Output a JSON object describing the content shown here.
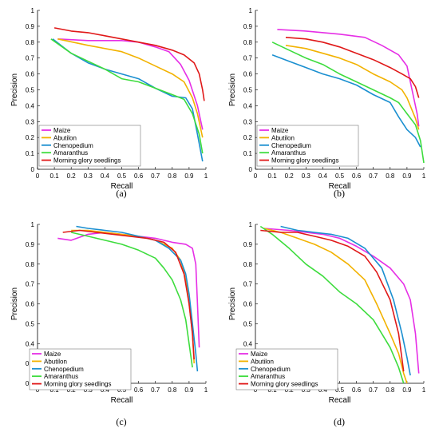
{
  "colors": {
    "Maize": "#e62fe6",
    "Abutilon": "#f2b200",
    "Chenopedium": "#1a8fd0",
    "Amaranthus": "#3ddc3d",
    "Morning glory seedlings": "#e01818"
  },
  "chart_data": [
    {
      "type": "line",
      "caption": "(a)",
      "xlabel": "Recall",
      "ylabel": "Precision",
      "xlim": [
        0,
        1
      ],
      "ylim": [
        0,
        1
      ],
      "xticks": [
        "0",
        "0.1",
        "0.2",
        "0.3",
        "0.4",
        "0.5",
        "0.6",
        "0.7",
        "0.8",
        "0.9",
        "1"
      ],
      "yticks": [
        "0",
        "0.1",
        "0.2",
        "0.3",
        "0.4",
        "0.5",
        "0.6",
        "0.7",
        "0.8",
        "0.9",
        "1"
      ],
      "legend_position": "bottom-left",
      "series": [
        {
          "name": "Maize",
          "x": [
            0.12,
            0.3,
            0.5,
            0.6,
            0.7,
            0.78,
            0.85,
            0.9,
            0.95,
            0.98
          ],
          "y": [
            0.82,
            0.81,
            0.81,
            0.8,
            0.77,
            0.74,
            0.66,
            0.56,
            0.4,
            0.25
          ]
        },
        {
          "name": "Abutilon",
          "x": [
            0.12,
            0.3,
            0.5,
            0.6,
            0.7,
            0.8,
            0.87,
            0.92,
            0.95,
            0.98
          ],
          "y": [
            0.82,
            0.78,
            0.74,
            0.7,
            0.65,
            0.6,
            0.55,
            0.45,
            0.35,
            0.2
          ]
        },
        {
          "name": "Chenopedium",
          "x": [
            0.09,
            0.2,
            0.3,
            0.4,
            0.5,
            0.6,
            0.7,
            0.8,
            0.88,
            0.92,
            0.95,
            0.98
          ],
          "y": [
            0.82,
            0.73,
            0.67,
            0.63,
            0.6,
            0.57,
            0.51,
            0.46,
            0.45,
            0.38,
            0.22,
            0.05
          ]
        },
        {
          "name": "Amaranthus",
          "x": [
            0.08,
            0.2,
            0.3,
            0.4,
            0.5,
            0.6,
            0.7,
            0.8,
            0.87,
            0.92,
            0.96,
            0.98
          ],
          "y": [
            0.82,
            0.73,
            0.68,
            0.63,
            0.57,
            0.55,
            0.51,
            0.47,
            0.44,
            0.35,
            0.22,
            0.1
          ]
        },
        {
          "name": "Morning glory seedlings",
          "x": [
            0.1,
            0.2,
            0.3,
            0.4,
            0.5,
            0.6,
            0.7,
            0.8,
            0.87,
            0.93,
            0.96,
            0.98,
            0.99
          ],
          "y": [
            0.89,
            0.87,
            0.86,
            0.84,
            0.82,
            0.8,
            0.78,
            0.75,
            0.72,
            0.67,
            0.6,
            0.5,
            0.43
          ]
        }
      ]
    },
    {
      "type": "line",
      "caption": "(b)",
      "xlabel": "Recall",
      "ylabel": "Precision",
      "xlim": [
        0,
        1
      ],
      "ylim": [
        0,
        1
      ],
      "xticks": [
        "0",
        "0.1",
        "0.2",
        "0.3",
        "0.4",
        "0.5",
        "0.6",
        "0.7",
        "0.8",
        "0.9",
        "1"
      ],
      "yticks": [
        "0",
        "0.1",
        "0.2",
        "0.3",
        "0.4",
        "0.5",
        "0.6",
        "0.7",
        "0.8",
        "0.9",
        "1"
      ],
      "legend_position": "bottom-left",
      "series": [
        {
          "name": "Maize",
          "x": [
            0.13,
            0.3,
            0.5,
            0.65,
            0.75,
            0.85,
            0.9,
            0.93,
            0.96,
            0.97
          ],
          "y": [
            0.88,
            0.87,
            0.85,
            0.83,
            0.78,
            0.72,
            0.65,
            0.5,
            0.35,
            0.27
          ]
        },
        {
          "name": "Abutilon",
          "x": [
            0.18,
            0.3,
            0.4,
            0.5,
            0.6,
            0.7,
            0.8,
            0.87,
            0.9,
            0.95,
            0.97
          ],
          "y": [
            0.78,
            0.76,
            0.73,
            0.7,
            0.66,
            0.6,
            0.55,
            0.5,
            0.45,
            0.32,
            0.25
          ]
        },
        {
          "name": "Chenopedium",
          "x": [
            0.1,
            0.2,
            0.3,
            0.4,
            0.5,
            0.6,
            0.7,
            0.8,
            0.85,
            0.9,
            0.95,
            0.98
          ],
          "y": [
            0.72,
            0.68,
            0.64,
            0.6,
            0.57,
            0.53,
            0.47,
            0.42,
            0.33,
            0.25,
            0.2,
            0.14
          ]
        },
        {
          "name": "Amaranthus",
          "x": [
            0.1,
            0.2,
            0.3,
            0.4,
            0.5,
            0.6,
            0.7,
            0.8,
            0.85,
            0.9,
            0.95,
            0.98,
            1.0
          ],
          "y": [
            0.8,
            0.75,
            0.7,
            0.66,
            0.6,
            0.55,
            0.5,
            0.45,
            0.42,
            0.35,
            0.28,
            0.18,
            0.04
          ]
        },
        {
          "name": "Morning glory seedlings",
          "x": [
            0.18,
            0.3,
            0.4,
            0.5,
            0.6,
            0.7,
            0.8,
            0.87,
            0.92,
            0.95,
            0.97
          ],
          "y": [
            0.83,
            0.82,
            0.8,
            0.77,
            0.73,
            0.69,
            0.64,
            0.6,
            0.57,
            0.52,
            0.45
          ]
        }
      ]
    },
    {
      "type": "line",
      "caption": "(c)",
      "xlabel": "Recall",
      "ylabel": "Precision",
      "xlim": [
        0,
        1
      ],
      "ylim": [
        0.2,
        1
      ],
      "xticks": [
        "0",
        "0.1",
        "0.2",
        "0.3",
        "0.4",
        "0.5",
        "0.6",
        "0.7",
        "0.8",
        "0.9",
        "1"
      ],
      "yticks": [
        "0.2",
        "0.3",
        "0.4",
        "0.5",
        "0.6",
        "0.7",
        "0.8",
        "0.9",
        "1"
      ],
      "legend_position": "bottom-left",
      "series": [
        {
          "name": "Maize",
          "x": [
            0.12,
            0.2,
            0.3,
            0.4,
            0.5,
            0.6,
            0.7,
            0.8,
            0.88,
            0.92,
            0.94,
            0.95,
            0.96
          ],
          "y": [
            0.93,
            0.92,
            0.95,
            0.96,
            0.95,
            0.94,
            0.93,
            0.91,
            0.9,
            0.88,
            0.8,
            0.6,
            0.38
          ]
        },
        {
          "name": "Abutilon",
          "x": [
            0.2,
            0.3,
            0.4,
            0.5,
            0.6,
            0.7,
            0.8,
            0.85,
            0.88,
            0.9,
            0.92,
            0.93
          ],
          "y": [
            0.97,
            0.97,
            0.96,
            0.95,
            0.94,
            0.92,
            0.88,
            0.82,
            0.72,
            0.6,
            0.45,
            0.3
          ]
        },
        {
          "name": "Chenopedium",
          "x": [
            0.23,
            0.3,
            0.4,
            0.5,
            0.6,
            0.7,
            0.78,
            0.85,
            0.88,
            0.9,
            0.92,
            0.94,
            0.95
          ],
          "y": [
            0.99,
            0.98,
            0.97,
            0.96,
            0.94,
            0.92,
            0.88,
            0.82,
            0.75,
            0.65,
            0.5,
            0.35,
            0.26
          ]
        },
        {
          "name": "Amaranthus",
          "x": [
            0.2,
            0.3,
            0.4,
            0.5,
            0.6,
            0.7,
            0.75,
            0.8,
            0.85,
            0.88,
            0.9,
            0.92
          ],
          "y": [
            0.96,
            0.94,
            0.92,
            0.9,
            0.87,
            0.83,
            0.78,
            0.72,
            0.62,
            0.52,
            0.4,
            0.28
          ]
        },
        {
          "name": "Morning glory seedlings",
          "x": [
            0.15,
            0.25,
            0.35,
            0.45,
            0.55,
            0.65,
            0.75,
            0.82,
            0.87,
            0.9,
            0.92,
            0.93
          ],
          "y": [
            0.96,
            0.97,
            0.96,
            0.95,
            0.94,
            0.93,
            0.91,
            0.86,
            0.75,
            0.6,
            0.45,
            0.32
          ]
        }
      ]
    },
    {
      "type": "line",
      "caption": "(d)",
      "xlabel": "Recall",
      "ylabel": "Precision",
      "xlim": [
        0,
        1
      ],
      "ylim": [
        0.2,
        1
      ],
      "xticks": [
        "0",
        "0.1",
        "0.2",
        "0.3",
        "0.4",
        "0.5",
        "0.6",
        "0.7",
        "0.8",
        "0.9",
        "1"
      ],
      "yticks": [
        "0.2",
        "0.3",
        "0.4",
        "0.5",
        "0.6",
        "0.7",
        "0.8",
        "0.9",
        "1"
      ],
      "legend_position": "bottom-left",
      "series": [
        {
          "name": "Maize",
          "x": [
            0.05,
            0.2,
            0.3,
            0.4,
            0.5,
            0.6,
            0.7,
            0.8,
            0.88,
            0.92,
            0.95,
            0.97
          ],
          "y": [
            0.98,
            0.97,
            0.96,
            0.95,
            0.93,
            0.89,
            0.84,
            0.78,
            0.7,
            0.62,
            0.45,
            0.25
          ]
        },
        {
          "name": "Abutilon",
          "x": [
            0.05,
            0.15,
            0.25,
            0.35,
            0.45,
            0.55,
            0.65,
            0.72,
            0.8,
            0.85,
            0.88,
            0.9
          ],
          "y": [
            0.98,
            0.96,
            0.93,
            0.9,
            0.86,
            0.8,
            0.72,
            0.6,
            0.45,
            0.35,
            0.25,
            0.2
          ]
        },
        {
          "name": "Chenopedium",
          "x": [
            0.15,
            0.25,
            0.35,
            0.45,
            0.55,
            0.65,
            0.75,
            0.82,
            0.87,
            0.9,
            0.92
          ],
          "y": [
            0.99,
            0.97,
            0.96,
            0.95,
            0.93,
            0.88,
            0.78,
            0.62,
            0.45,
            0.33,
            0.24
          ]
        },
        {
          "name": "Amaranthus",
          "x": [
            0.03,
            0.1,
            0.2,
            0.3,
            0.4,
            0.5,
            0.6,
            0.7,
            0.75,
            0.8,
            0.85,
            0.88
          ],
          "y": [
            0.99,
            0.95,
            0.88,
            0.8,
            0.74,
            0.66,
            0.6,
            0.52,
            0.45,
            0.38,
            0.28,
            0.2
          ]
        },
        {
          "name": "Morning glory seedlings",
          "x": [
            0.03,
            0.15,
            0.25,
            0.35,
            0.45,
            0.55,
            0.65,
            0.72,
            0.8,
            0.85,
            0.88
          ],
          "y": [
            0.97,
            0.96,
            0.96,
            0.94,
            0.92,
            0.89,
            0.84,
            0.76,
            0.62,
            0.45,
            0.26
          ]
        }
      ]
    }
  ]
}
